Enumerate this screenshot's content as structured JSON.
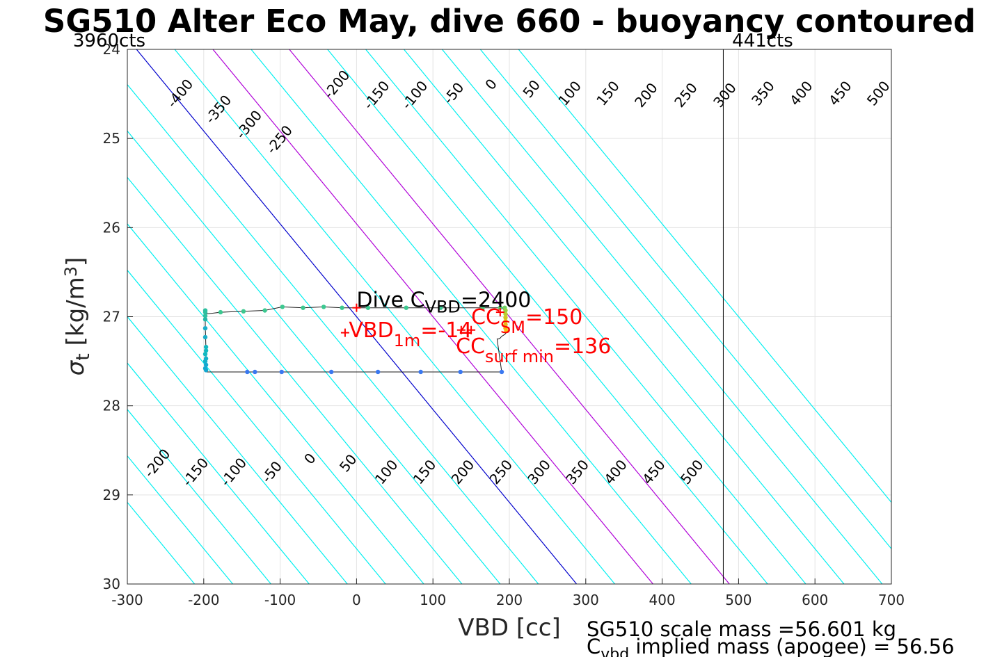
{
  "chart_data": {
    "type": "scatter",
    "title": "SG510 Alter Eco May, dive 660 - buoyancy contoured",
    "xlabel": "VBD [cc]",
    "ylabel": {
      "main": "σ",
      "sub": "t",
      "unit_open": " [kg/m",
      "unit_sup": "3",
      "unit_close": "]"
    },
    "xlim": [
      -300,
      700
    ],
    "ylim": [
      24,
      30
    ],
    "y_reversed": true,
    "grid": true,
    "xticks": [
      -300,
      -200,
      -100,
      0,
      100,
      200,
      300,
      400,
      500,
      600,
      700
    ],
    "xtick_labels": [
      "-300",
      "-200",
      "-100",
      "0",
      "100",
      "200",
      "300",
      "400",
      "500",
      "600",
      "700"
    ],
    "yticks": [
      24,
      25,
      26,
      27,
      28,
      29,
      30
    ],
    "ytick_labels": [
      "24",
      "25",
      "26",
      "27",
      "28",
      "29",
      "30"
    ],
    "corner_labels": {
      "left": "3960cts",
      "right": "441cts"
    },
    "vbd_limit_x": 480,
    "contour_slope_cc_per_sigma": 96,
    "contours": {
      "levels": [
        -500,
        -450,
        -400,
        -350,
        -300,
        -250,
        -200,
        -150,
        -100,
        -50,
        0,
        50,
        100,
        150,
        200,
        250,
        300,
        350,
        400,
        450,
        500
      ],
      "zero_level": 0,
      "highlight_levels": [
        100,
        200
      ],
      "colors": {
        "normal": "#00f0f0",
        "zero": "#0000cc",
        "highlight": "#b000d8"
      },
      "top_labels": [
        {
          "text": "-400",
          "x": -230,
          "y": 24.5
        },
        {
          "text": "-350",
          "x": -180,
          "y": 24.68
        },
        {
          "text": "-300",
          "x": -140,
          "y": 24.85
        },
        {
          "text": "-250",
          "x": -100,
          "y": 25.02
        },
        {
          "text": "-200",
          "x": -25,
          "y": 24.4
        },
        {
          "text": "-150",
          "x": 27,
          "y": 24.52
        },
        {
          "text": "-100",
          "x": 77,
          "y": 24.52
        },
        {
          "text": "-50",
          "x": 128,
          "y": 24.5
        },
        {
          "text": "0",
          "x": 177,
          "y": 24.4
        },
        {
          "text": "50",
          "x": 230,
          "y": 24.45
        },
        {
          "text": "100",
          "x": 280,
          "y": 24.5
        },
        {
          "text": "150",
          "x": 330,
          "y": 24.5
        },
        {
          "text": "200",
          "x": 380,
          "y": 24.52
        },
        {
          "text": "250",
          "x": 432,
          "y": 24.52
        },
        {
          "text": "300",
          "x": 483,
          "y": 24.52
        },
        {
          "text": "350",
          "x": 533,
          "y": 24.5
        },
        {
          "text": "400",
          "x": 583,
          "y": 24.5
        },
        {
          "text": "450",
          "x": 634,
          "y": 24.5
        },
        {
          "text": "500",
          "x": 684,
          "y": 24.5
        }
      ],
      "bottom_labels": [
        {
          "text": "-200",
          "x": -260,
          "y": 28.65
        },
        {
          "text": "-150",
          "x": -210,
          "y": 28.75
        },
        {
          "text": "-100",
          "x": -160,
          "y": 28.75
        },
        {
          "text": "-50",
          "x": -110,
          "y": 28.75
        },
        {
          "text": "0",
          "x": -60,
          "y": 28.6
        },
        {
          "text": "50",
          "x": -10,
          "y": 28.65
        },
        {
          "text": "100",
          "x": 40,
          "y": 28.75
        },
        {
          "text": "150",
          "x": 90,
          "y": 28.75
        },
        {
          "text": "200",
          "x": 140,
          "y": 28.75
        },
        {
          "text": "250",
          "x": 190,
          "y": 28.75
        },
        {
          "text": "300",
          "x": 240,
          "y": 28.75
        },
        {
          "text": "350",
          "x": 290,
          "y": 28.75
        },
        {
          "text": "400",
          "x": 340,
          "y": 28.75
        },
        {
          "text": "450",
          "x": 390,
          "y": 28.75
        },
        {
          "text": "500",
          "x": 440,
          "y": 28.75
        }
      ]
    },
    "dive_track": {
      "line": [
        [
          -198,
          26.97
        ],
        [
          -178,
          26.95
        ],
        [
          -148,
          26.94
        ],
        [
          -120,
          26.93
        ],
        [
          -97,
          26.89
        ],
        [
          -70,
          26.9
        ],
        [
          -43,
          26.89
        ],
        [
          -19,
          26.9
        ],
        [
          15,
          26.9
        ],
        [
          65,
          26.9
        ],
        [
          110,
          26.9
        ],
        [
          165,
          26.9
        ],
        [
          190,
          26.9
        ],
        [
          194,
          26.9
        ],
        [
          195,
          26.91
        ],
        [
          195,
          27.0
        ],
        [
          196,
          27.12
        ],
        [
          196,
          27.18
        ],
        [
          194,
          27.2
        ],
        [
          190,
          27.22
        ],
        [
          188,
          27.24
        ],
        [
          186,
          27.25
        ],
        [
          184,
          27.25
        ],
        [
          190,
          27.62
        ],
        [
          136,
          27.62
        ],
        [
          84,
          27.62
        ],
        [
          28,
          27.62
        ],
        [
          -33,
          27.62
        ],
        [
          -98,
          27.62
        ],
        [
          -133,
          27.62
        ],
        [
          -143,
          27.62
        ],
        [
          -197,
          27.62
        ],
        [
          -197,
          27.4
        ],
        [
          -198,
          27.1
        ],
        [
          -198,
          26.97
        ]
      ],
      "points": [
        {
          "x": -198,
          "y": 26.93,
          "color": "#2dc0a0"
        },
        {
          "x": -198,
          "y": 26.95,
          "color": "#2dc0a0"
        },
        {
          "x": -198,
          "y": 26.99,
          "color": "#2dc0a0"
        },
        {
          "x": -198,
          "y": 27.03,
          "color": "#22b8a8"
        },
        {
          "x": -198,
          "y": 27.13,
          "color": "#1aaec8"
        },
        {
          "x": -198,
          "y": 27.23,
          "color": "#1aaec8"
        },
        {
          "x": -197,
          "y": 27.34,
          "color": "#14b8c0"
        },
        {
          "x": -197,
          "y": 27.38,
          "color": "#14b8c0"
        },
        {
          "x": -198,
          "y": 27.42,
          "color": "#14b8c0"
        },
        {
          "x": -197,
          "y": 27.47,
          "color": "#14b0c8"
        },
        {
          "x": -198,
          "y": 27.5,
          "color": "#14b0c8"
        },
        {
          "x": -197,
          "y": 27.54,
          "color": "#14a8d0"
        },
        {
          "x": -198,
          "y": 27.58,
          "color": "#14a8d0"
        },
        {
          "x": -197,
          "y": 27.6,
          "color": "#14a8d0"
        },
        {
          "x": -178,
          "y": 26.95,
          "color": "#3cc890"
        },
        {
          "x": -148,
          "y": 26.94,
          "color": "#3cc890"
        },
        {
          "x": -120,
          "y": 26.93,
          "color": "#3cc890"
        },
        {
          "x": -97,
          "y": 26.89,
          "color": "#3cc890"
        },
        {
          "x": -70,
          "y": 26.9,
          "color": "#3cc890"
        },
        {
          "x": -43,
          "y": 26.89,
          "color": "#3cc890"
        },
        {
          "x": -19,
          "y": 26.9,
          "color": "#3cc890"
        },
        {
          "x": 15,
          "y": 26.9,
          "color": "#3cc890"
        },
        {
          "x": 65,
          "y": 26.9,
          "color": "#3cc890"
        },
        {
          "x": 110,
          "y": 26.9,
          "color": "#3cc890"
        },
        {
          "x": 165,
          "y": 26.9,
          "color": "#4ccc80"
        },
        {
          "x": 188,
          "y": 26.9,
          "color": "#5ad070"
        },
        {
          "x": 194,
          "y": 26.9,
          "color": "#70d060"
        },
        {
          "x": 195,
          "y": 26.93,
          "color": "#9ad040"
        },
        {
          "x": 195,
          "y": 26.97,
          "color": "#b8d030"
        },
        {
          "x": 195,
          "y": 27.01,
          "color": "#d0c820"
        },
        {
          "x": 195,
          "y": 27.05,
          "color": "#e0c018"
        },
        {
          "x": 195,
          "y": 27.09,
          "color": "#e8b818"
        },
        {
          "x": 195,
          "y": 27.13,
          "color": "#f0b810"
        },
        {
          "x": 196,
          "y": 27.16,
          "color": "#f8c010"
        },
        {
          "x": 190,
          "y": 27.62,
          "color": "#3a78f0"
        },
        {
          "x": 136,
          "y": 27.62,
          "color": "#3a78f0"
        },
        {
          "x": 84,
          "y": 27.62,
          "color": "#3a78f0"
        },
        {
          "x": 28,
          "y": 27.62,
          "color": "#3a78f0"
        },
        {
          "x": -33,
          "y": 27.62,
          "color": "#3a78f0"
        },
        {
          "x": -98,
          "y": 27.62,
          "color": "#3a78f0"
        },
        {
          "x": -133,
          "y": 27.62,
          "color": "#3a78f0"
        },
        {
          "x": -143,
          "y": 27.62,
          "color": "#3a78f0"
        }
      ]
    },
    "markers": [
      {
        "x": 0,
        "y": 26.9,
        "color": "#ff0000"
      },
      {
        "x": -15,
        "y": 27.18,
        "color": "#ff0000"
      },
      {
        "x": 137,
        "y": 27.15,
        "color": "#ff0000"
      },
      {
        "x": 150,
        "y": 27.15,
        "color": "#ff0000"
      },
      {
        "x": 188,
        "y": 26.95,
        "color": "#ff0000"
      }
    ],
    "annotations": {
      "dive_cvbd": {
        "prefix": "Dive C",
        "sub": "VBD",
        "suffix": "=2400",
        "x": 0,
        "y": 26.89,
        "color": "#000000"
      },
      "vbd_1m": {
        "prefix": "VBD",
        "sub": "1m",
        "suffix": "=-14",
        "x": -10,
        "y": 27.23,
        "color": "#ff0000"
      },
      "cc_sm": {
        "prefix": "CC",
        "sub": "SM",
        "suffix": "=150",
        "x": 150,
        "y": 27.08,
        "color": "#ff0000"
      },
      "cc_surf_min": {
        "prefix": "CC",
        "sub": "surf min",
        "suffix": "=136",
        "x": 130,
        "y": 27.41,
        "color": "#ff0000"
      }
    },
    "footer": {
      "line1": "SG510 scale mass =56.601 kg",
      "line2_prefix": "C",
      "line2_sub": "vbd",
      "line2_suffix": " implied mass (apogee) = 56.56"
    }
  }
}
